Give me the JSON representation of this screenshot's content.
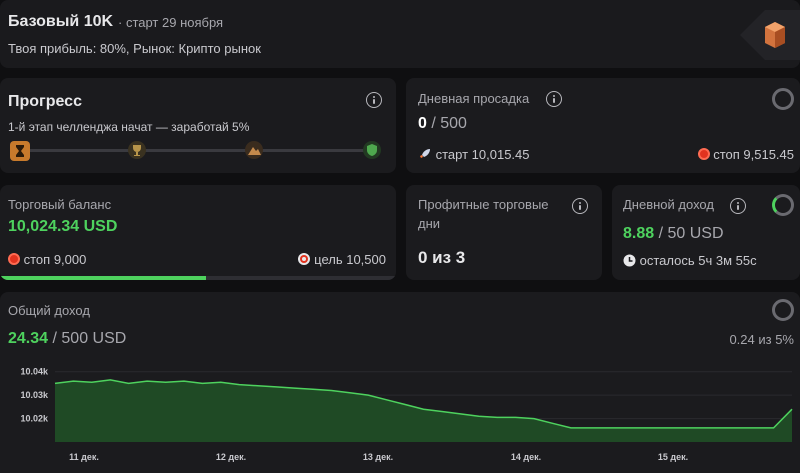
{
  "header": {
    "title": "Базовый 10K",
    "start_date": "старт 29 ноября",
    "subtitle": "Твоя прибыль: 80%, Рынок: Крипто рынок"
  },
  "progress": {
    "title": "Прогресс",
    "description": "1-й этап челленджа начат — заработай 5%",
    "steps": [
      "hourglass-icon",
      "trophy-icon",
      "mountain-icon",
      "shield-icon"
    ]
  },
  "drawdown": {
    "title": "Дневная просадка",
    "current": "0",
    "limit": "/ 500",
    "start_label": "старт 10,015.45",
    "stop_label": "стоп 9,515.45"
  },
  "balance": {
    "title": "Торговый баланс",
    "value": "10,024.34 USD",
    "stop_label": "стоп 9,000",
    "target_label": "цель 10,500",
    "progress": 0.52
  },
  "profit_days": {
    "title_line1": "Профитные торговые",
    "title_line2": "дни",
    "value": "0 из 3"
  },
  "daily_income": {
    "title": "Дневной доход",
    "current": "8.88",
    "limit": "/ 50 USD",
    "remaining": "осталось 5ч 3м 55с"
  },
  "total_income": {
    "title": "Общий доход",
    "current": "24.34",
    "limit": "/ 500 USD",
    "ratio": "0.24 из 5%"
  },
  "chart_data": {
    "type": "area",
    "y_ticks": [
      "10.04k",
      "10.03k",
      "10.02k"
    ],
    "x_ticks": [
      "11 дек.",
      "12 дек.",
      "13 дек.",
      "14 дек.",
      "15 дек."
    ],
    "ylim": [
      10010,
      10045
    ],
    "series": [
      {
        "values": [
          10035,
          10036,
          10035.5,
          10036.5,
          10035,
          10036,
          10035.5,
          10036,
          10035,
          10035.5,
          10034.5,
          10034,
          10033.5,
          10033,
          10032.5,
          10032,
          10031,
          10030,
          10028,
          10026,
          10024,
          10023,
          10022,
          10021,
          10020.5,
          10020.5,
          10020,
          10018,
          10016,
          10016,
          10016,
          10016,
          10016,
          10016,
          10016,
          10016,
          10016,
          10016,
          10016,
          10016,
          10024
        ]
      }
    ],
    "color": "#4ed25e"
  }
}
